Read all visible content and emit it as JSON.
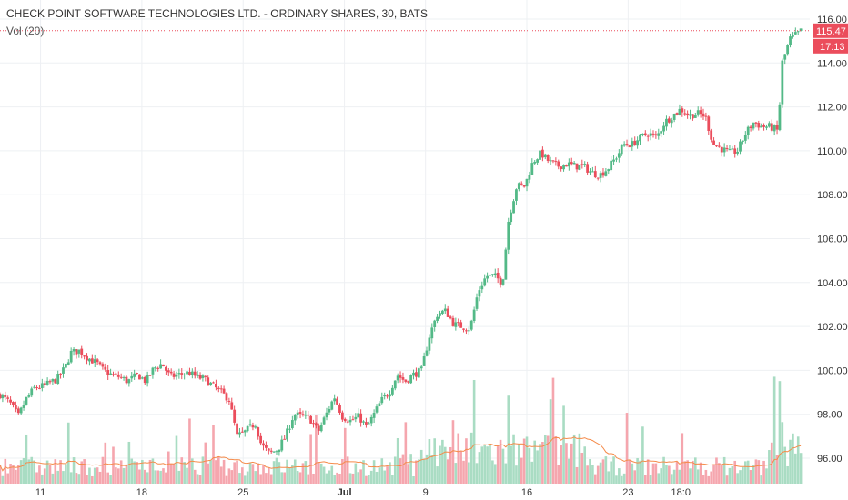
{
  "chart_data": {
    "type": "candlestick",
    "title": "CHECK POINT SOFTWARE TECHNOLOGIES LTD. - ORDINARY SHARES, 30, BATS",
    "volume_label": "Vol (20)",
    "y_ticks": [
      "116.00",
      "114.00",
      "112.00",
      "110.00",
      "108.00",
      "106.00",
      "104.00",
      "102.00",
      "100.00",
      "98.00",
      "96.00"
    ],
    "ylim": [
      94.8,
      116.6
    ],
    "x_ticks": [
      {
        "label": "11",
        "session": 2
      },
      {
        "label": "18",
        "session": 7
      },
      {
        "label": "25",
        "session": 12
      },
      {
        "label": "Jul",
        "session": 17
      },
      {
        "label": "9",
        "session": 21
      },
      {
        "label": "16",
        "session": 26
      },
      {
        "label": "23",
        "session": 31
      },
      {
        "label": "18:0",
        "session": 33.6
      }
    ],
    "last_price": 115.47,
    "last_price_label": "115.47",
    "countdown_label": "17:13",
    "grid": true,
    "colors": {
      "up": "#53b987",
      "down": "#eb4d5c",
      "volume_up": "#a9dcc3",
      "volume_down": "#f5a6ae",
      "ma_line": "#f58b4a",
      "price_line": "#eb4d5c",
      "grid": "#eef0f3",
      "text": "#333333"
    },
    "path_points": [
      [
        0,
        98.9
      ],
      [
        0.5,
        98.5
      ],
      [
        0.9,
        97.9
      ],
      [
        1.3,
        98.7
      ],
      [
        1.7,
        99.2
      ],
      [
        2.2,
        99.3
      ],
      [
        2.8,
        99.6
      ],
      [
        3.2,
        100.1
      ],
      [
        3.5,
        100.8
      ],
      [
        3.9,
        100.9
      ],
      [
        4.3,
        100.6
      ],
      [
        4.8,
        100.3
      ],
      [
        5.1,
        100.0
      ],
      [
        5.5,
        99.8
      ],
      [
        5.9,
        99.7
      ],
      [
        6.3,
        99.5
      ],
      [
        6.8,
        99.8
      ],
      [
        7.2,
        99.5
      ],
      [
        7.6,
        100.1
      ],
      [
        8.0,
        100.3
      ],
      [
        8.4,
        99.7
      ],
      [
        8.8,
        99.8
      ],
      [
        9.3,
        99.9
      ],
      [
        9.7,
        99.7
      ],
      [
        10.1,
        99.6
      ],
      [
        10.5,
        99.3
      ],
      [
        10.9,
        99.0
      ],
      [
        11.3,
        98.7
      ],
      [
        11.7,
        97.0
      ],
      [
        12.1,
        97.2
      ],
      [
        12.6,
        97.6
      ],
      [
        12.9,
        96.6
      ],
      [
        13.3,
        96.2
      ],
      [
        13.7,
        96.4
      ],
      [
        14.1,
        97.0
      ],
      [
        14.5,
        98.0
      ],
      [
        14.9,
        97.9
      ],
      [
        15.3,
        97.8
      ],
      [
        15.7,
        97.2
      ],
      [
        16.1,
        98.0
      ],
      [
        16.5,
        98.8
      ],
      [
        16.9,
        97.9
      ],
      [
        17.3,
        97.7
      ],
      [
        17.7,
        97.9
      ],
      [
        18.1,
        97.4
      ],
      [
        18.4,
        97.9
      ],
      [
        18.8,
        98.6
      ],
      [
        19.2,
        99.0
      ],
      [
        19.6,
        99.8
      ],
      [
        20.0,
        99.5
      ],
      [
        20.4,
        99.8
      ],
      [
        20.8,
        100.0
      ],
      [
        21.2,
        101.6
      ],
      [
        21.6,
        102.6
      ],
      [
        22.0,
        102.7
      ],
      [
        22.4,
        102.1
      ],
      [
        22.8,
        102.0
      ],
      [
        23.2,
        101.9
      ],
      [
        23.6,
        103.6
      ],
      [
        24.0,
        104.3
      ],
      [
        24.4,
        104.3
      ],
      [
        24.8,
        104.0
      ],
      [
        25.1,
        106.9
      ],
      [
        25.5,
        108.4
      ],
      [
        25.9,
        108.4
      ],
      [
        26.3,
        109.5
      ],
      [
        26.7,
        109.9
      ],
      [
        27.1,
        109.5
      ],
      [
        27.5,
        109.3
      ],
      [
        28.0,
        109.4
      ],
      [
        28.4,
        109.3
      ],
      [
        28.8,
        109.3
      ],
      [
        29.2,
        109.0
      ],
      [
        29.6,
        108.9
      ],
      [
        30.0,
        109.2
      ],
      [
        30.4,
        109.7
      ],
      [
        30.8,
        110.3
      ],
      [
        31.2,
        110.3
      ],
      [
        31.6,
        110.6
      ],
      [
        32.0,
        110.8
      ],
      [
        32.4,
        110.6
      ],
      [
        32.8,
        111.3
      ],
      [
        33.2,
        111.6
      ],
      [
        33.6,
        111.9
      ],
      [
        34.0,
        111.6
      ],
      [
        34.4,
        111.7
      ],
      [
        34.8,
        111.6
      ],
      [
        35.2,
        110.3
      ],
      [
        35.6,
        110.1
      ],
      [
        36.0,
        109.9
      ],
      [
        36.4,
        110.0
      ],
      [
        36.8,
        110.8
      ],
      [
        37.2,
        111.3
      ],
      [
        37.6,
        111.1
      ],
      [
        38.0,
        111.1
      ],
      [
        38.4,
        110.9
      ],
      [
        38.6,
        114.0
      ],
      [
        39.0,
        115.1
      ],
      [
        39.3,
        115.3
      ],
      [
        39.55,
        115.47
      ]
    ]
  }
}
